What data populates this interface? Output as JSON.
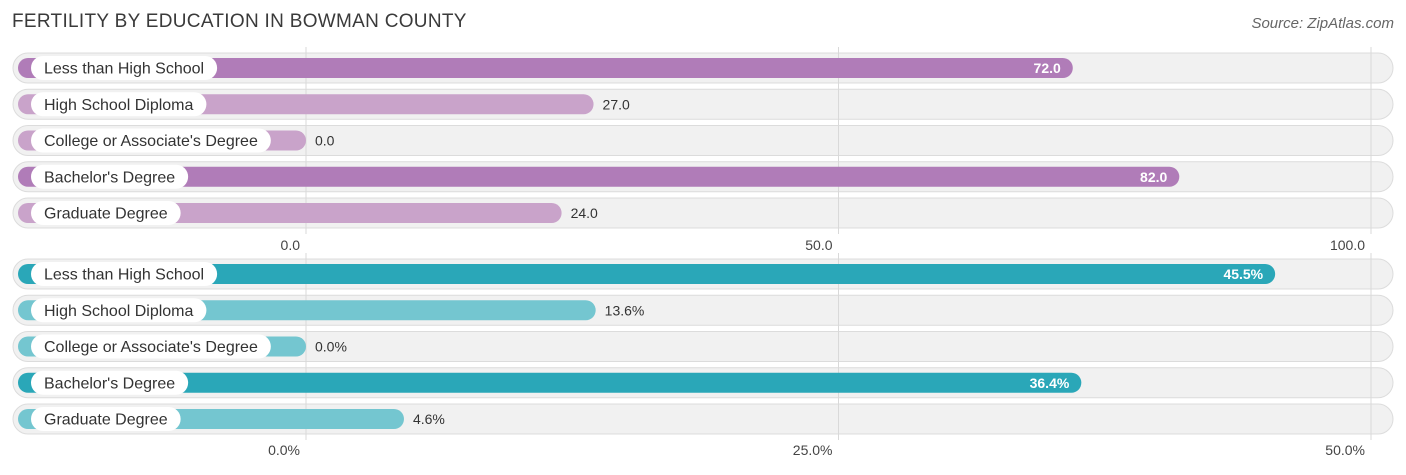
{
  "title": "FERTILITY BY EDUCATION IN BOWMAN COUNTY",
  "source": "Source: ZipAtlas.com",
  "chart_data": [
    {
      "type": "bar",
      "orientation": "horizontal",
      "categories": [
        "Less than High School",
        "High School Diploma",
        "College or Associate's Degree",
        "Bachelor's Degree",
        "Graduate Degree"
      ],
      "values": [
        72.0,
        27.0,
        0.0,
        82.0,
        24.0
      ],
      "value_labels": [
        "72.0",
        "27.0",
        "0.0",
        "82.0",
        "24.0"
      ],
      "xlim": [
        0,
        100
      ],
      "ticks": [
        0,
        50,
        100
      ],
      "tick_labels": [
        "0.0",
        "50.0",
        "100.0"
      ],
      "colors": {
        "strong": "#b07cb8",
        "light": "#c9a3ca"
      },
      "grid": true
    },
    {
      "type": "bar",
      "orientation": "horizontal",
      "categories": [
        "Less than High School",
        "High School Diploma",
        "College or Associate's Degree",
        "Bachelor's Degree",
        "Graduate Degree"
      ],
      "values": [
        45.5,
        13.6,
        0.0,
        36.4,
        4.6
      ],
      "value_labels": [
        "45.5%",
        "13.6%",
        "0.0%",
        "36.4%",
        "4.6%"
      ],
      "xlim": [
        0,
        50
      ],
      "ticks": [
        0,
        25,
        50
      ],
      "tick_labels": [
        "0.0%",
        "25.0%",
        "50.0%"
      ],
      "colors": {
        "strong": "#2aa7b8",
        "light": "#74c6d0"
      },
      "grid": true
    }
  ]
}
